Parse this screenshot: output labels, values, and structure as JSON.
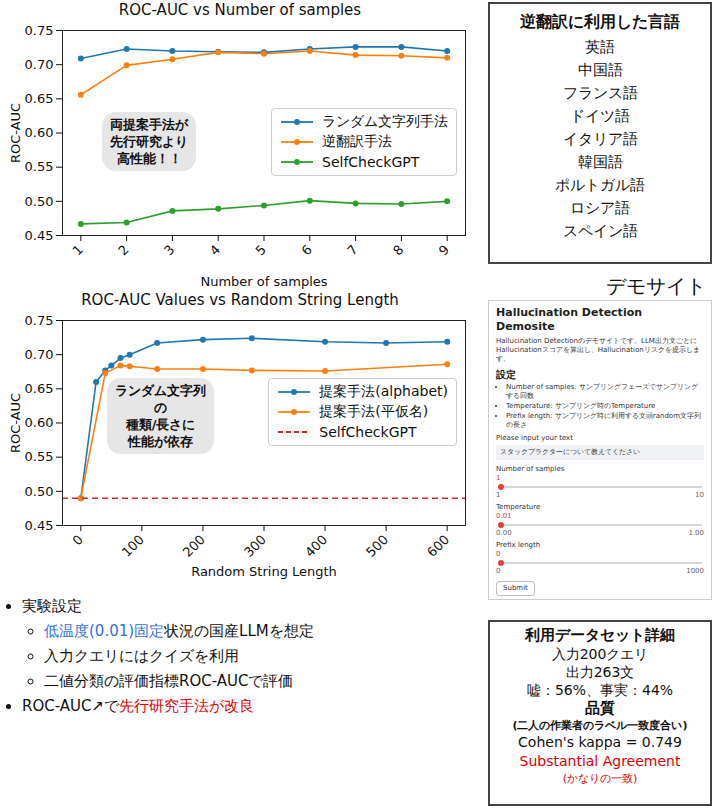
{
  "chart_data": [
    {
      "type": "line",
      "title": "ROC-AUC vs Number of samples",
      "x_label": "Number of samples",
      "y_label": "ROC-AUC",
      "x": [
        1,
        2,
        3,
        4,
        5,
        6,
        7,
        8,
        9
      ],
      "series": [
        {
          "name": "ランダム文字列手法",
          "color": "#1f77b4",
          "marker": "circle",
          "line_style": "solid",
          "values": [
            0.709,
            0.723,
            0.72,
            0.719,
            0.718,
            0.723,
            0.726,
            0.726,
            0.72
          ]
        },
        {
          "name": "逆翻訳手法",
          "color": "#ff7f0e",
          "marker": "circle",
          "line_style": "solid",
          "values": [
            0.656,
            0.699,
            0.708,
            0.718,
            0.716,
            0.72,
            0.714,
            0.713,
            0.71
          ]
        },
        {
          "name": "SelfCheckGPT",
          "color": "#2ca02c",
          "marker": "circle",
          "line_style": "solid",
          "values": [
            0.467,
            0.469,
            0.486,
            0.489,
            0.494,
            0.501,
            0.497,
            0.496,
            0.5
          ]
        }
      ],
      "xlim": [
        0.6,
        9.4
      ],
      "xticks": [
        1,
        2,
        3,
        4,
        5,
        6,
        7,
        8,
        9
      ],
      "ylim": [
        0.45,
        0.75
      ],
      "yticks": [
        0.45,
        {
          "value": 0.5,
          "label": "0.50"
        },
        0.55,
        {
          "value": 0.6,
          "label": "0.60"
        },
        0.65,
        {
          "value": 0.7,
          "label": "0.70"
        },
        0.75
      ],
      "grid": false,
      "legend": "right",
      "annotation": [
        "両提案手法が",
        "先行研究より",
        "高性能！！"
      ]
    },
    {
      "type": "line",
      "title": "ROC-AUC Values vs Random String Length",
      "x_label": "Random String Length",
      "y_label": "ROC-AUC",
      "series": [
        {
          "name": "提案手法(alphabet)",
          "color": "#1f77b4",
          "marker": "circle",
          "line_style": "solid",
          "x": [
            0,
            25,
            40,
            50,
            65,
            80,
            125,
            200,
            280,
            400,
            500,
            600
          ],
          "values": [
            0.49,
            0.66,
            0.677,
            0.684,
            0.695,
            0.7,
            0.717,
            0.722,
            0.724,
            0.719,
            0.717,
            0.719
          ]
        },
        {
          "name": "提案手法(平仮名)",
          "color": "#ff7f0e",
          "marker": "circle",
          "line_style": "solid",
          "x": [
            0,
            40,
            65,
            80,
            125,
            200,
            280,
            400,
            600
          ],
          "values": [
            0.49,
            0.673,
            0.684,
            0.683,
            0.679,
            0.679,
            0.677,
            0.676,
            0.686
          ]
        },
        {
          "name": "SelfCheckGPT",
          "color": "#d62728",
          "type": "rule",
          "line_style": "dashed",
          "values": [
            0.49
          ]
        }
      ],
      "xlim": [
        -30,
        630
      ],
      "xticks": [
        0,
        100,
        200,
        300,
        400,
        500,
        600
      ],
      "ylim": [
        0.45,
        0.75
      ],
      "yticks": [
        0.45,
        {
          "value": 0.5,
          "label": "0.50"
        },
        0.55,
        {
          "value": 0.6,
          "label": "0.60"
        },
        0.65,
        {
          "value": 0.7,
          "label": "0.70"
        },
        0.75
      ],
      "grid": false,
      "legend": "right",
      "annotation": [
        "ランダム文字列",
        "の",
        "種類/長さに",
        "性能が依存"
      ]
    }
  ],
  "languages": {
    "title": "逆翻訳に利用した言語",
    "items": [
      "英語",
      "中国語",
      "フランス語",
      "ドイツ語",
      "イタリア語",
      "韓国語",
      "ポルトガル語",
      "ロシア語",
      "スペイン語"
    ]
  },
  "demo_site": {
    "label": "デモサイト",
    "screenshot": {
      "title": "Hallucination Detection Demosite",
      "description": "Hallucination Detectionのデモサイトです。LLM出力文ごとにHallucinationスコアを算出し、Hallucinationリスクを提示します。",
      "section": "設定",
      "bullets": [
        "Number of samples: サンプリングフェーズでサンプリングする回数",
        "Temperature: サンプリング時のTemperature",
        "Prefix length: サンプリング時に利用する文頭random文字列の長さ"
      ],
      "input_label": "Please input your text",
      "input_value": "スタックプラクターについて教えてください",
      "sliders": [
        {
          "label": "Number of samples",
          "value": "1",
          "min": "1",
          "max": "10"
        },
        {
          "label": "Temperature",
          "value": "0.01",
          "min": "0.00",
          "max": "1.00"
        },
        {
          "label": "Prefix length",
          "value": "0",
          "min": "0",
          "max": "1000"
        }
      ],
      "button": "Submit"
    }
  },
  "experiment": {
    "items": [
      {
        "segments": [
          {
            "text": "実験設定"
          }
        ],
        "children": [
          {
            "segments": [
              {
                "text": "低温度(0.01)固定",
                "color": "#2e75d6"
              },
              {
                "text": "状況の国産LLMを想定"
              }
            ]
          },
          {
            "segments": [
              {
                "text": "入力クエリにはクイズを利用"
              }
            ]
          },
          {
            "segments": [
              {
                "text": "二値分類の評価指標ROC-AUCで評価"
              }
            ]
          }
        ]
      },
      {
        "segments": [
          {
            "text": "ROC-AUC↗で"
          },
          {
            "text": "先行研究手法が改良",
            "color": "#e00000"
          }
        ]
      }
    ]
  },
  "dataset": {
    "title": "利用データセット詳細",
    "lines": [
      "入力200クエリ",
      "出力263文",
      "嘘：56%、事実：44%"
    ],
    "quality_title": "品質",
    "quality_note": "(二人の作業者のラベル一致度合い)",
    "kappa": "Cohen's kappa = 0.749",
    "agreement": {
      "text": "Substantial Agreement",
      "color": "#e00000"
    },
    "agreement_note": {
      "text": "(かなりの一致)",
      "color": "#e00000"
    }
  }
}
